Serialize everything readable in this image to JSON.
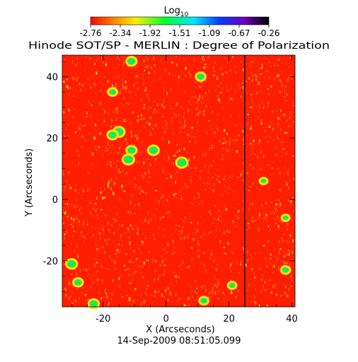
{
  "chart_data": {
    "type": "heatmap",
    "title": "Hinode SOT/SP - MERLIN : Degree of Polarization",
    "timestamp": "14-Sep-2009 08:51:05.099",
    "xlabel": "X (Arcseconds)",
    "ylabel": "Y (Arcseconds)",
    "xlim": [
      -33,
      41
    ],
    "ylim": [
      -35,
      47
    ],
    "x_ticks": [
      -20,
      0,
      20,
      40
    ],
    "y_ticks": [
      -20,
      0,
      20,
      40
    ],
    "x_tick_labels": [
      "-20",
      "0",
      "20",
      "40"
    ],
    "y_tick_labels": [
      "-20",
      "0",
      "20",
      "40"
    ],
    "scan_gap_x": 25,
    "colorbar": {
      "title_main": "Log",
      "title_sub": "10",
      "scale": "log10",
      "range": [
        -2.76,
        -0.26
      ],
      "tick_labels": [
        "-2.76",
        "-2.34",
        "-1.92",
        "-1.51",
        "-1.09",
        "-0.67",
        "-0.26"
      ]
    },
    "colors": {
      "background": "#ff1e00",
      "low": "#ff0000",
      "mid": "#ffee00",
      "high": "#00ff30"
    },
    "features": [
      {
        "x": -11,
        "y": 45,
        "value": -1.95
      },
      {
        "x": -17,
        "y": 35,
        "value": -2.05
      },
      {
        "x": -15,
        "y": 22,
        "value": -1.85
      },
      {
        "x": -17,
        "y": 21,
        "value": -1.95
      },
      {
        "x": -12,
        "y": 13,
        "value": -1.85
      },
      {
        "x": -11,
        "y": 16,
        "value": -1.95
      },
      {
        "x": -4,
        "y": 16,
        "value": -1.9
      },
      {
        "x": 5,
        "y": 12,
        "value": -1.85
      },
      {
        "x": 11,
        "y": 40,
        "value": -2.0
      },
      {
        "x": -30,
        "y": -21,
        "value": -1.9
      },
      {
        "x": -28,
        "y": -27,
        "value": -2.0
      },
      {
        "x": -23,
        "y": -34,
        "value": -1.95
      },
      {
        "x": 12,
        "y": -33,
        "value": -2.05
      },
      {
        "x": 21,
        "y": -28,
        "value": -2.1
      },
      {
        "x": 31,
        "y": 6,
        "value": -2.2
      },
      {
        "x": 38,
        "y": -6,
        "value": -2.2
      },
      {
        "x": 38,
        "y": -23,
        "value": -2.05
      }
    ]
  }
}
